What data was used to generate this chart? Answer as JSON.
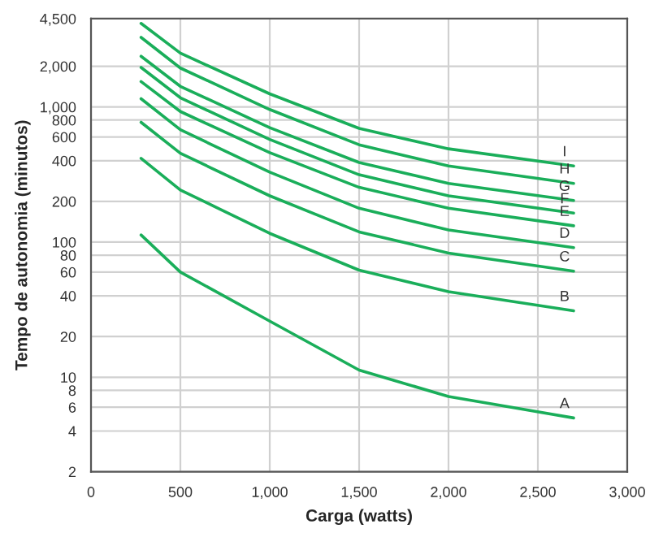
{
  "chart_data": {
    "type": "line",
    "xlabel": "Carga (watts)",
    "ylabel": "Tempo de autonomia (minutos)",
    "log": "y",
    "grid": true,
    "marker": "none",
    "line_style": "solid",
    "x": [
      280,
      500,
      1000,
      1500,
      2000,
      2700
    ],
    "series": [
      {
        "name": "A",
        "color": "#1aae5a",
        "values": [
          113,
          60,
          26,
          11.3,
          7.2,
          5.0
        ]
      },
      {
        "name": "B",
        "color": "#1aae5a",
        "values": [
          417,
          243,
          116,
          62,
          43,
          31
        ]
      },
      {
        "name": "C",
        "color": "#1aae5a",
        "values": [
          770,
          454,
          220,
          119,
          83,
          61
        ]
      },
      {
        "name": "D",
        "color": "#1aae5a",
        "values": [
          1150,
          678,
          329,
          178,
          123,
          91
        ]
      },
      {
        "name": "E",
        "color": "#1aae5a",
        "values": [
          1540,
          925,
          459,
          254,
          178,
          132
        ]
      },
      {
        "name": "F",
        "color": "#1aae5a",
        "values": [
          1960,
          1170,
          575,
          315,
          220,
          164
        ]
      },
      {
        "name": "G",
        "color": "#1aae5a",
        "values": [
          2370,
          1420,
          703,
          388,
          272,
          203
        ]
      },
      {
        "name": "H",
        "color": "#1aae5a",
        "values": [
          3270,
          1940,
          957,
          525,
          366,
          272
        ]
      },
      {
        "name": "I",
        "color": "#1aae5a",
        "values": [
          4150,
          2500,
          1250,
          694,
          490,
          366
        ]
      }
    ],
    "xlim": [
      0,
      3000
    ],
    "xticks": [
      0,
      500,
      {
        "value": 1000,
        "label": "1,000"
      },
      {
        "value": 1500,
        "label": "1,500"
      },
      {
        "value": 2000,
        "label": "2,000"
      },
      {
        "value": 2500,
        "label": "2,500"
      },
      {
        "value": 3000,
        "label": "3,000"
      }
    ],
    "ylim": [
      2,
      4500
    ],
    "yticks": [
      2,
      4,
      6,
      8,
      10,
      20,
      40,
      60,
      80,
      100,
      200,
      400,
      600,
      800,
      {
        "value": 1000,
        "label": "1,000"
      },
      {
        "value": 2000,
        "label": "2,000"
      },
      {
        "value": 4500,
        "label": "4,500"
      }
    ]
  }
}
